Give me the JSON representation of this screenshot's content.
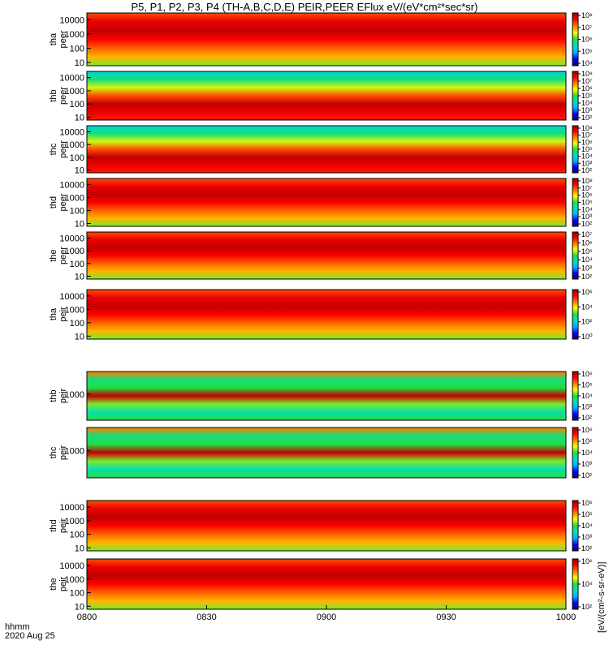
{
  "title": "P5, P1, P2, P3, P4 (TH-A,B,C,D,E) PEIR,PEER EFlux eV/(eV*cm²*sec*sr)",
  "footer": {
    "time_label": "hhmm",
    "date_label": "2020 Aug 25"
  },
  "colors": {
    "colormap": [
      "#1a0066",
      "#0000ff",
      "#00b0ff",
      "#00e0c8",
      "#22dd44",
      "#ffff00",
      "#ff8000",
      "#ff0000",
      "#990000"
    ]
  },
  "chart_data": {
    "type": "heatmap",
    "x_ticks": [
      "0800",
      "0830",
      "0900",
      "0930",
      "1000"
    ],
    "x_range_hours": [
      8.0,
      10.0
    ],
    "colorbar_units": "[eV/(cm²-s-sr-eV)]",
    "panels": [
      {
        "id": "tha-peer",
        "label": [
          "tha",
          "peer"
        ],
        "y_ticks": [
          "10",
          "100",
          "1000",
          "10000"
        ],
        "y_range": [
          6,
          30000
        ],
        "y_scale": "log",
        "colorbar_ticks": [
          "10⁴",
          "10⁵",
          "10⁶",
          "10⁷",
          "10⁸"
        ]
      },
      {
        "id": "thb-peer",
        "label": [
          "thb",
          "peer"
        ],
        "y_ticks": [
          "10",
          "100",
          "1000",
          "10000"
        ],
        "y_range": [
          6,
          30000
        ],
        "y_scale": "log",
        "colorbar_ticks": [
          "10²",
          "10³",
          "10⁴",
          "10⁵",
          "10⁶",
          "10⁷",
          "10⁸"
        ]
      },
      {
        "id": "thc-peer",
        "label": [
          "thc",
          "peer"
        ],
        "y_ticks": [
          "10",
          "100",
          "1000",
          "10000"
        ],
        "y_range": [
          6,
          30000
        ],
        "y_scale": "log",
        "colorbar_ticks": [
          "10²",
          "10³",
          "10⁴",
          "10⁵",
          "10⁶",
          "10⁷",
          "10⁸"
        ]
      },
      {
        "id": "thd-peer",
        "label": [
          "thd",
          "peer"
        ],
        "y_ticks": [
          "10",
          "100",
          "1000",
          "10000"
        ],
        "y_range": [
          6,
          30000
        ],
        "y_scale": "log",
        "colorbar_ticks": [
          "10²",
          "10³",
          "10⁴",
          "10⁵",
          "10⁶",
          "10⁷",
          "10⁸"
        ]
      },
      {
        "id": "the-peer",
        "label": [
          "the",
          "peer"
        ],
        "y_ticks": [
          "10",
          "100",
          "1000",
          "10000"
        ],
        "y_range": [
          6,
          30000
        ],
        "y_scale": "log",
        "colorbar_ticks": [
          "10²",
          "10³",
          "10⁴",
          "10⁵",
          "10⁶",
          "10⁷"
        ]
      },
      {
        "id": "tha-peir",
        "label": [
          "tha",
          "peir"
        ],
        "y_ticks": [
          "10",
          "100",
          "1000",
          "10000"
        ],
        "y_range": [
          6,
          30000
        ],
        "y_scale": "log",
        "colorbar_ticks": [
          "10⁰",
          "10²",
          "10⁴",
          "10⁶"
        ]
      },
      {
        "id": "thb-peir",
        "label": [
          "thb",
          "peir"
        ],
        "y_ticks": [
          "1000"
        ],
        "y_range": [
          200,
          4000
        ],
        "y_scale": "log",
        "colorbar_ticks": [
          "10²",
          "10³",
          "10⁴",
          "10⁵",
          "10⁶"
        ]
      },
      {
        "id": "thc-peir",
        "label": [
          "thc",
          "peir"
        ],
        "y_ticks": [
          "1000"
        ],
        "y_range": [
          200,
          4000
        ],
        "y_scale": "log",
        "colorbar_ticks": [
          "10²",
          "10³",
          "10⁴",
          "10⁵",
          "10⁶"
        ]
      },
      {
        "id": "thd-peir",
        "label": [
          "thd",
          "peir"
        ],
        "y_ticks": [
          "10",
          "100",
          "1000",
          "10000"
        ],
        "y_range": [
          6,
          30000
        ],
        "y_scale": "log",
        "colorbar_ticks": [
          "10²",
          "10³",
          "10⁴",
          "10⁵",
          "10⁶"
        ]
      },
      {
        "id": "the-peir",
        "label": [
          "the",
          "peir"
        ],
        "y_ticks": [
          "10",
          "100",
          "1000",
          "10000"
        ],
        "y_range": [
          6,
          30000
        ],
        "y_scale": "log",
        "colorbar_ticks": [
          "10²",
          "10⁴",
          "10⁶"
        ]
      }
    ]
  }
}
